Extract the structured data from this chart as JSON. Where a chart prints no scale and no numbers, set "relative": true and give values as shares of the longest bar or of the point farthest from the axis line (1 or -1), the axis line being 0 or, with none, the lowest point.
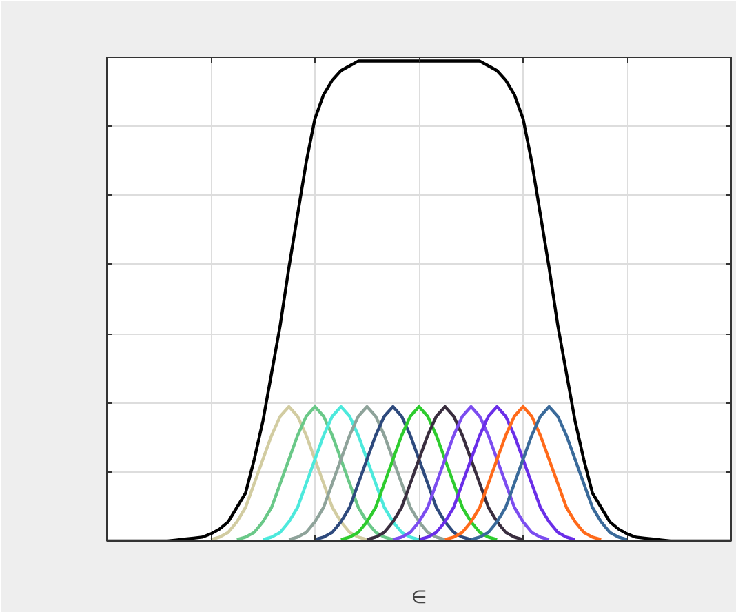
{
  "chart_data": {
    "type": "line",
    "relative": true,
    "xlabel": "∈",
    "grid": true,
    "line_style": "solid",
    "categories": [
      null,
      null,
      null,
      null,
      null,
      null,
      null,
      null,
      null,
      null,
      null,
      null,
      null,
      null,
      null,
      null,
      null,
      null,
      null,
      null,
      null,
      null,
      null,
      null,
      null,
      null,
      null,
      null,
      null,
      null,
      null,
      null,
      null,
      null,
      null,
      null,
      null,
      null,
      null,
      null,
      null,
      null,
      null,
      null,
      null,
      null,
      null,
      null,
      null,
      null,
      null,
      null,
      null,
      null,
      null,
      null,
      null,
      null,
      null,
      null,
      null,
      null,
      null,
      null,
      null,
      null,
      null,
      null,
      null,
      null,
      null,
      null,
      null
    ],
    "series": [
      {
        "color": "#000000",
        "values": [
          0,
          0,
          0,
          0,
          0,
          0,
          0,
          0,
          0.002,
          0.004,
          0.006,
          0.008,
          0.015,
          0.025,
          0.04,
          0.07,
          0.1,
          0.17,
          0.25,
          0.35,
          0.45,
          0.57,
          0.68,
          0.79,
          0.88,
          0.93,
          0.96,
          0.98,
          0.99,
          1,
          1,
          1,
          1,
          1,
          1,
          1,
          1,
          1,
          1,
          1,
          1,
          1,
          1,
          1,
          0.99,
          0.98,
          0.96,
          0.93,
          0.88,
          0.79,
          0.68,
          0.57,
          0.45,
          0.35,
          0.25,
          0.17,
          0.1,
          0.07,
          0.04,
          0.025,
          0.015,
          0.008,
          0.006,
          0.004,
          0.002,
          0,
          0,
          0,
          0,
          0,
          0,
          0,
          0
        ]
      },
      {
        "color": "#d2cca1",
        "values": [
          null,
          null,
          null,
          null,
          null,
          null,
          null,
          null,
          null,
          null,
          null,
          null,
          0.003,
          0.008,
          0.018,
          0.04,
          0.07,
          0.12,
          0.17,
          0.22,
          0.26,
          0.28,
          0.26,
          0.22,
          0.17,
          0.12,
          0.07,
          0.04,
          0.018,
          0.008,
          0.003,
          null,
          null,
          null,
          null,
          null,
          null,
          null,
          null,
          null,
          null,
          null,
          null,
          null,
          null,
          null,
          null,
          null,
          null,
          null,
          null,
          null,
          null,
          null,
          null,
          null,
          null,
          null,
          null,
          null,
          null,
          null,
          null,
          null,
          null,
          null,
          null,
          null,
          null,
          null,
          null,
          null,
          null
        ]
      },
      {
        "color": "#6ac888",
        "values": [
          null,
          null,
          null,
          null,
          null,
          null,
          null,
          null,
          null,
          null,
          null,
          null,
          null,
          null,
          null,
          0.003,
          0.008,
          0.018,
          0.04,
          0.07,
          0.12,
          0.17,
          0.22,
          0.26,
          0.28,
          0.26,
          0.22,
          0.17,
          0.12,
          0.07,
          0.04,
          0.018,
          0.008,
          0.003,
          null,
          null,
          null,
          null,
          null,
          null,
          null,
          null,
          null,
          null,
          null,
          null,
          null,
          null,
          null,
          null,
          null,
          null,
          null,
          null,
          null,
          null,
          null,
          null,
          null,
          null,
          null,
          null,
          null,
          null,
          null,
          null,
          null,
          null,
          null,
          null,
          null,
          null,
          null
        ]
      },
      {
        "color": "#4de9dc",
        "values": [
          null,
          null,
          null,
          null,
          null,
          null,
          null,
          null,
          null,
          null,
          null,
          null,
          null,
          null,
          null,
          null,
          null,
          null,
          0.003,
          0.008,
          0.018,
          0.04,
          0.07,
          0.12,
          0.17,
          0.22,
          0.26,
          0.28,
          0.26,
          0.22,
          0.17,
          0.12,
          0.07,
          0.04,
          0.018,
          0.008,
          0.003,
          null,
          null,
          null,
          null,
          null,
          null,
          null,
          null,
          null,
          null,
          null,
          null,
          null,
          null,
          null,
          null,
          null,
          null,
          null,
          null,
          null,
          null,
          null,
          null,
          null,
          null,
          null,
          null,
          null,
          null,
          null,
          null,
          null,
          null,
          null,
          null
        ]
      },
      {
        "color": "#8ea39a",
        "values": [
          null,
          null,
          null,
          null,
          null,
          null,
          null,
          null,
          null,
          null,
          null,
          null,
          null,
          null,
          null,
          null,
          null,
          null,
          null,
          null,
          null,
          0.003,
          0.008,
          0.018,
          0.04,
          0.07,
          0.12,
          0.17,
          0.22,
          0.26,
          0.28,
          0.26,
          0.22,
          0.17,
          0.12,
          0.07,
          0.04,
          0.018,
          0.008,
          0.003,
          null,
          null,
          null,
          null,
          null,
          null,
          null,
          null,
          null,
          null,
          null,
          null,
          null,
          null,
          null,
          null,
          null,
          null,
          null,
          null,
          null,
          null,
          null,
          null,
          null,
          null,
          null,
          null,
          null,
          null,
          null,
          null,
          null
        ]
      },
      {
        "color": "#2e4a7d",
        "values": [
          null,
          null,
          null,
          null,
          null,
          null,
          null,
          null,
          null,
          null,
          null,
          null,
          null,
          null,
          null,
          null,
          null,
          null,
          null,
          null,
          null,
          null,
          null,
          null,
          0.003,
          0.008,
          0.018,
          0.04,
          0.07,
          0.12,
          0.17,
          0.22,
          0.26,
          0.28,
          0.26,
          0.22,
          0.17,
          0.12,
          0.07,
          0.04,
          0.018,
          0.008,
          0.003,
          null,
          null,
          null,
          null,
          null,
          null,
          null,
          null,
          null,
          null,
          null,
          null,
          null,
          null,
          null,
          null,
          null,
          null,
          null,
          null,
          null,
          null,
          null,
          null,
          null,
          null,
          null,
          null,
          null,
          null
        ]
      },
      {
        "color": "#2ecc2e",
        "values": [
          null,
          null,
          null,
          null,
          null,
          null,
          null,
          null,
          null,
          null,
          null,
          null,
          null,
          null,
          null,
          null,
          null,
          null,
          null,
          null,
          null,
          null,
          null,
          null,
          null,
          null,
          null,
          0.003,
          0.008,
          0.018,
          0.04,
          0.07,
          0.12,
          0.17,
          0.22,
          0.26,
          0.28,
          0.26,
          0.22,
          0.17,
          0.12,
          0.07,
          0.04,
          0.018,
          0.008,
          0.003,
          null,
          null,
          null,
          null,
          null,
          null,
          null,
          null,
          null,
          null,
          null,
          null,
          null,
          null,
          null,
          null,
          null,
          null,
          null,
          null,
          null,
          null,
          null,
          null,
          null,
          null,
          null
        ]
      },
      {
        "color": "#3a2e3f",
        "values": [
          null,
          null,
          null,
          null,
          null,
          null,
          null,
          null,
          null,
          null,
          null,
          null,
          null,
          null,
          null,
          null,
          null,
          null,
          null,
          null,
          null,
          null,
          null,
          null,
          null,
          null,
          null,
          null,
          null,
          null,
          0.003,
          0.008,
          0.018,
          0.04,
          0.07,
          0.12,
          0.17,
          0.22,
          0.26,
          0.28,
          0.26,
          0.22,
          0.17,
          0.12,
          0.07,
          0.04,
          0.018,
          0.008,
          0.003,
          null,
          null,
          null,
          null,
          null,
          null,
          null,
          null,
          null,
          null,
          null,
          null,
          null,
          null,
          null,
          null,
          null,
          null,
          null,
          null,
          null,
          null,
          null,
          null
        ]
      },
      {
        "color": "#7c4df0",
        "values": [
          null,
          null,
          null,
          null,
          null,
          null,
          null,
          null,
          null,
          null,
          null,
          null,
          null,
          null,
          null,
          null,
          null,
          null,
          null,
          null,
          null,
          null,
          null,
          null,
          null,
          null,
          null,
          null,
          null,
          null,
          null,
          null,
          null,
          0.003,
          0.008,
          0.018,
          0.04,
          0.07,
          0.12,
          0.17,
          0.22,
          0.26,
          0.28,
          0.26,
          0.22,
          0.17,
          0.12,
          0.07,
          0.04,
          0.018,
          0.008,
          0.003,
          null,
          null,
          null,
          null,
          null,
          null,
          null,
          null,
          null,
          null,
          null,
          null,
          null,
          null,
          null,
          null,
          null,
          null,
          null,
          null,
          null
        ]
      },
      {
        "color": "#6a2ee8",
        "values": [
          null,
          null,
          null,
          null,
          null,
          null,
          null,
          null,
          null,
          null,
          null,
          null,
          null,
          null,
          null,
          null,
          null,
          null,
          null,
          null,
          null,
          null,
          null,
          null,
          null,
          null,
          null,
          null,
          null,
          null,
          null,
          null,
          null,
          null,
          null,
          null,
          0.003,
          0.008,
          0.018,
          0.04,
          0.07,
          0.12,
          0.17,
          0.22,
          0.26,
          0.28,
          0.26,
          0.22,
          0.17,
          0.12,
          0.07,
          0.04,
          0.018,
          0.008,
          0.003,
          null,
          null,
          null,
          null,
          null,
          null,
          null,
          null,
          null,
          null,
          null,
          null,
          null,
          null,
          null,
          null,
          null,
          null
        ]
      },
      {
        "color": "#ff6a1a",
        "values": [
          null,
          null,
          null,
          null,
          null,
          null,
          null,
          null,
          null,
          null,
          null,
          null,
          null,
          null,
          null,
          null,
          null,
          null,
          null,
          null,
          null,
          null,
          null,
          null,
          null,
          null,
          null,
          null,
          null,
          null,
          null,
          null,
          null,
          null,
          null,
          null,
          null,
          null,
          null,
          0.003,
          0.008,
          0.018,
          0.04,
          0.07,
          0.12,
          0.17,
          0.22,
          0.26,
          0.28,
          0.26,
          0.22,
          0.17,
          0.12,
          0.07,
          0.04,
          0.018,
          0.008,
          0.003,
          null,
          null,
          null,
          null,
          null,
          null,
          null,
          null,
          null,
          null,
          null,
          null,
          null,
          null,
          null
        ]
      },
      {
        "color": "#3a6a9a",
        "values": [
          null,
          null,
          null,
          null,
          null,
          null,
          null,
          null,
          null,
          null,
          null,
          null,
          null,
          null,
          null,
          null,
          null,
          null,
          null,
          null,
          null,
          null,
          null,
          null,
          null,
          null,
          null,
          null,
          null,
          null,
          null,
          null,
          null,
          null,
          null,
          null,
          null,
          null,
          null,
          null,
          null,
          null,
          0.003,
          0.008,
          0.018,
          0.04,
          0.07,
          0.12,
          0.17,
          0.22,
          0.26,
          0.28,
          0.26,
          0.22,
          0.17,
          0.12,
          0.07,
          0.04,
          0.018,
          0.008,
          0.003,
          null,
          null,
          null,
          null,
          null,
          null,
          null,
          null,
          null,
          null,
          null,
          null
        ]
      }
    ]
  }
}
